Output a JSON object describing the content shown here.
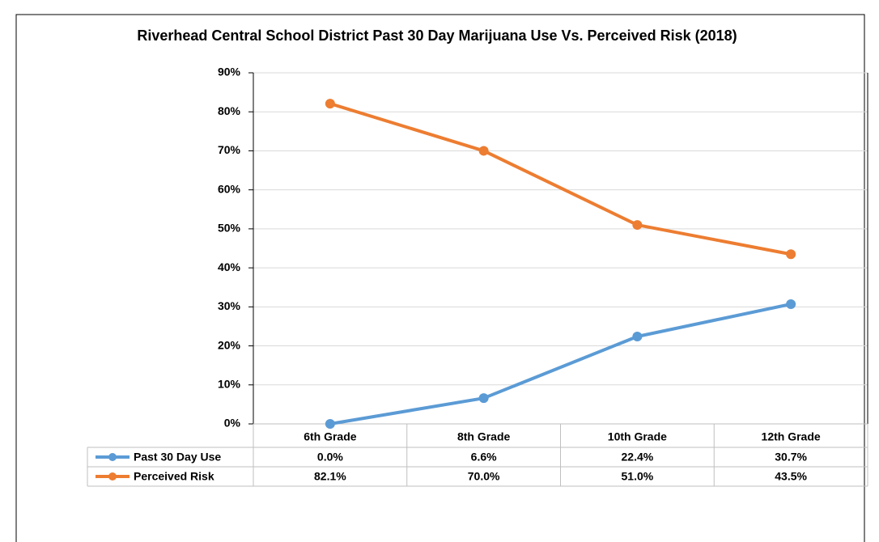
{
  "chart_data": {
    "type": "line",
    "title": "Riverhead Central School District Past 30 Day Marijuana Use Vs. Perceived Risk (2018)",
    "categories": [
      "6th Grade",
      "8th Grade",
      "10th Grade",
      "12th Grade"
    ],
    "series": [
      {
        "name": "Past 30 Day Use",
        "color": "#5b9bd5",
        "values": [
          0.0,
          6.6,
          22.4,
          30.7
        ],
        "value_labels": [
          "0.0%",
          "6.6%",
          "22.4%",
          "30.7%"
        ]
      },
      {
        "name": "Perceived Risk",
        "color": "#ed7d31",
        "values": [
          82.1,
          70.0,
          51.0,
          43.5
        ],
        "value_labels": [
          "82.1%",
          "70.0%",
          "51.0%",
          "43.5%"
        ]
      }
    ],
    "ylim": [
      0,
      90
    ],
    "yticks": [
      {
        "value": 0,
        "label": "0%"
      },
      {
        "value": 10,
        "label": "10%"
      },
      {
        "value": 20,
        "label": "20%"
      },
      {
        "value": 30,
        "label": "30%"
      },
      {
        "value": 40,
        "label": "40%"
      },
      {
        "value": 50,
        "label": "50%"
      },
      {
        "value": 60,
        "label": "60%"
      },
      {
        "value": 70,
        "label": "70%"
      },
      {
        "value": 80,
        "label": "80%"
      },
      {
        "value": 90,
        "label": "90%"
      }
    ],
    "grid": true,
    "data_table": true
  }
}
